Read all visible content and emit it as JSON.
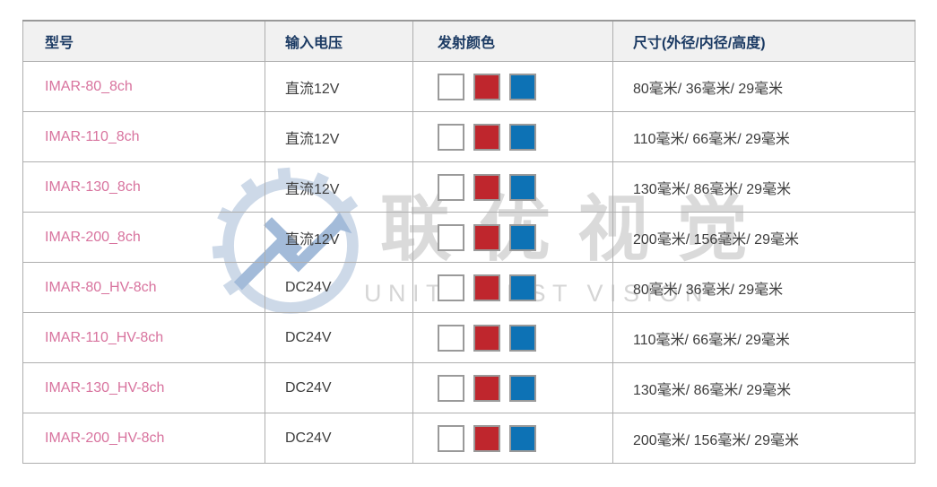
{
  "header": {
    "columns": [
      "型号",
      "输入电压",
      "发射颜色",
      "尺寸(外径/内径/高度)"
    ]
  },
  "rows": [
    {
      "model": "IMAR-80_8ch",
      "voltage": "直流12V",
      "emission_colors": [
        "white",
        "red",
        "blue"
      ],
      "size": "80毫米/ 36毫米/ 29毫米"
    },
    {
      "model": "IMAR-110_8ch",
      "voltage": "直流12V",
      "emission_colors": [
        "white",
        "red",
        "blue"
      ],
      "size": "110毫米/ 66毫米/ 29毫米"
    },
    {
      "model": "IMAR-130_8ch",
      "voltage": "直流12V",
      "emission_colors": [
        "white",
        "red",
        "blue"
      ],
      "size": "130毫米/ 86毫米/ 29毫米"
    },
    {
      "model": "IMAR-200_8ch",
      "voltage": "直流12V",
      "emission_colors": [
        "white",
        "red",
        "blue"
      ],
      "size": "200毫米/ 156毫米/ 29毫米"
    },
    {
      "model": "IMAR-80_HV-8ch",
      "voltage": "DC24V",
      "emission_colors": [
        "white",
        "red",
        "blue"
      ],
      "size": "80毫米/ 36毫米/ 29毫米"
    },
    {
      "model": "IMAR-110_HV-8ch",
      "voltage": "DC24V",
      "emission_colors": [
        "white",
        "red",
        "blue"
      ],
      "size": "110毫米/ 66毫米/ 29毫米"
    },
    {
      "model": "IMAR-130_HV-8ch",
      "voltage": "DC24V",
      "emission_colors": [
        "white",
        "red",
        "blue"
      ],
      "size": "130毫米/ 86毫米/ 29毫米"
    },
    {
      "model": "IMAR-200_HV-8ch",
      "voltage": "DC24V",
      "emission_colors": [
        "white",
        "red",
        "blue"
      ],
      "size": "200毫米/ 156毫米/ 29毫米"
    }
  ],
  "swatch_palette": {
    "white": "#ffffff",
    "red": "#bf262d",
    "blue": "#0d72b5"
  },
  "watermark": {
    "logo": "gear-monogram-icon",
    "text_cn": "联优视觉",
    "text_en": "UNITE BEST VISION"
  },
  "colors": {
    "header_text": "#1b3a63",
    "header_bg": "#f1f1f1",
    "model_text": "#d8739e",
    "body_text": "#3d3d3d",
    "grid_border": "#aeaeae",
    "watermark_gray": "#dadada",
    "watermark_blue_light": "#cdd9e8",
    "watermark_blue": "#a3bbd9"
  }
}
